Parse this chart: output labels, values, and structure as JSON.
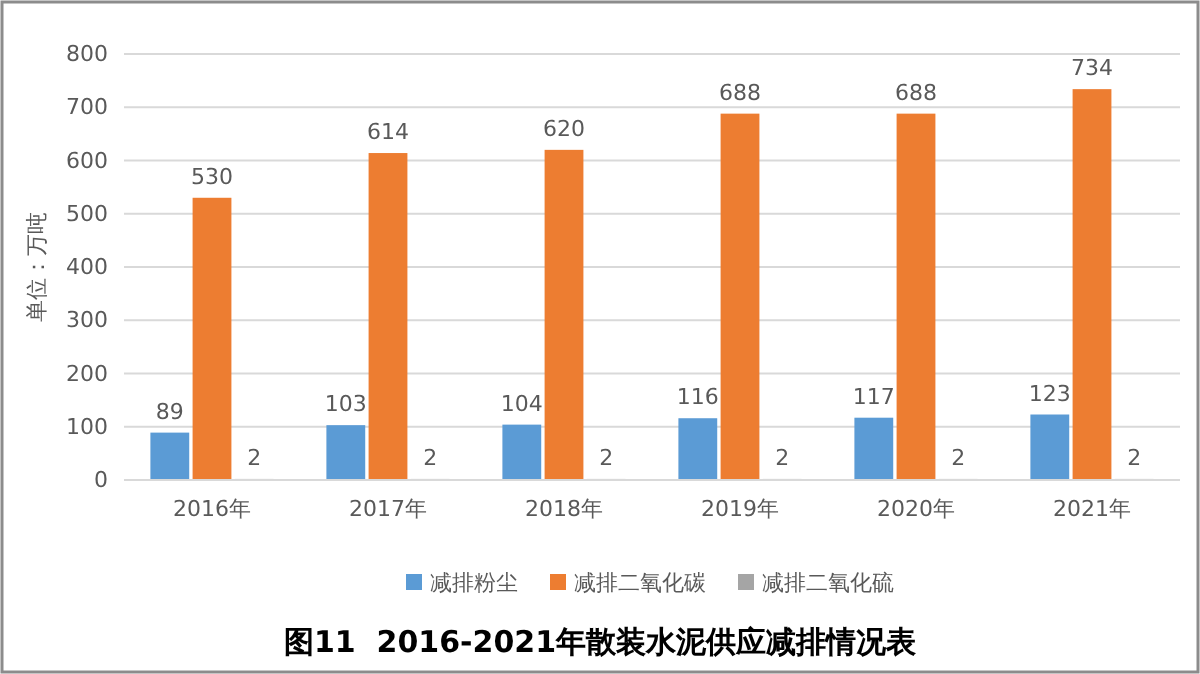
{
  "chart_data": {
    "type": "bar",
    "title": "图11  2016-2021年散装水泥供应减排情况表",
    "ylabel": "单位：万吨",
    "categories": [
      "2016年",
      "2017年",
      "2018年",
      "2019年",
      "2020年",
      "2021年"
    ],
    "series": [
      {
        "name": "减排粉尘",
        "color": "#5b9bd5",
        "values": [
          89,
          103,
          104,
          116,
          117,
          123
        ]
      },
      {
        "name": "减排二氧化碳",
        "color": "#ed7d31",
        "values": [
          530,
          614,
          620,
          688,
          688,
          734
        ]
      },
      {
        "name": "减排二氧化硫",
        "color": "#a5a5a5",
        "values": [
          2,
          2,
          2,
          2,
          2,
          2
        ]
      }
    ],
    "ylim": [
      0,
      800
    ],
    "yticks": [
      0,
      100,
      200,
      300,
      400,
      500,
      600,
      700,
      800
    ],
    "grid": "y",
    "legend": "bottom",
    "data_labels": true
  }
}
